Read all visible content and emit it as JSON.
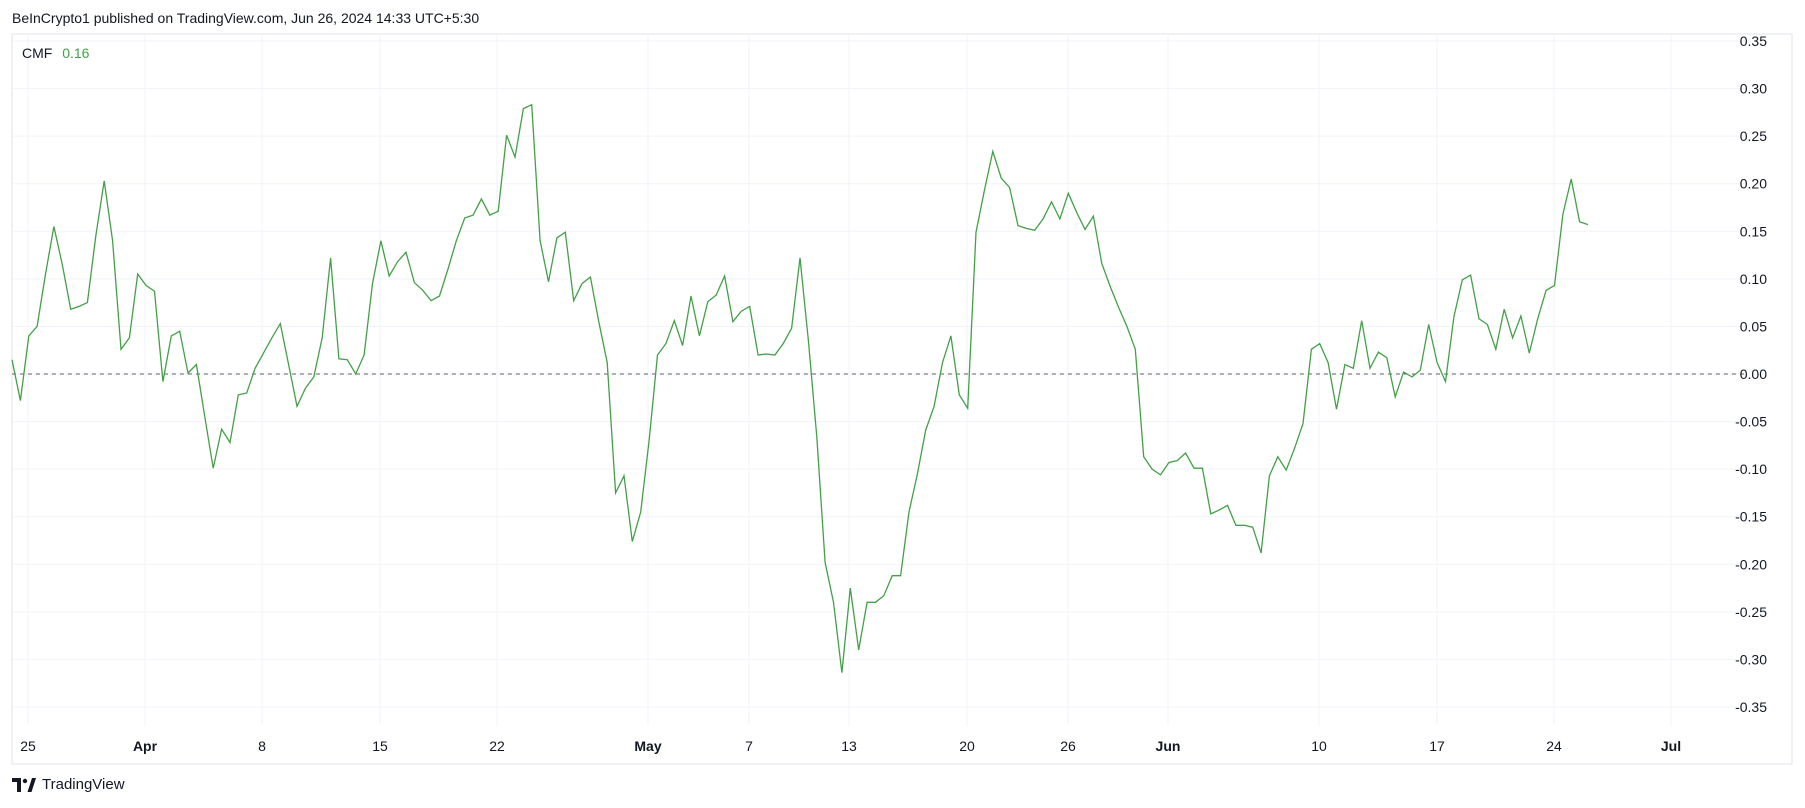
{
  "header": {
    "publisher_text": "BeInCrypto1 published on TradingView.com, Jun 26, 2024 14:33 UTC+5:30"
  },
  "indicator": {
    "name": "CMF",
    "value": "0.16",
    "color": "#43a047"
  },
  "footer": {
    "brand": "TradingView",
    "logo_icon": "tradingview-logo-icon"
  },
  "chart_data": {
    "type": "line",
    "series": [
      {
        "name": "CMF",
        "color": "#43a047",
        "values": [
          0.015,
          -0.028,
          0.04,
          0.05,
          0.105,
          0.155,
          0.115,
          0.068,
          0.071,
          0.075,
          0.145,
          0.203,
          0.14,
          0.026,
          0.038,
          0.105,
          0.093,
          0.087,
          -0.008,
          0.04,
          0.045,
          0.001,
          0.01,
          -0.045,
          -0.099,
          -0.058,
          -0.072,
          -0.022,
          -0.02,
          0.006,
          0.022,
          0.038,
          0.053,
          0.01,
          -0.034,
          -0.015,
          -0.003,
          0.038,
          0.122,
          0.016,
          0.015,
          0,
          0.02,
          0.095,
          0.14,
          0.103,
          0.118,
          0.128,
          0.096,
          0.088,
          0.077,
          0.082,
          0.11,
          0.14,
          0.164,
          0.167,
          0.184,
          0.167,
          0.171,
          0.251,
          0.228,
          0.279,
          0.283,
          0.14,
          0.097,
          0.143,
          0.149,
          0.077,
          0.095,
          0.102,
          0.055,
          0.012,
          -0.125,
          -0.107,
          -0.176,
          -0.145,
          -0.07,
          0.02,
          0.032,
          0.056,
          0.03,
          0.082,
          0.04,
          0.076,
          0.083,
          0.103,
          0.055,
          0.066,
          0.071,
          0.02,
          0.021,
          0.02,
          0.032,
          0.048,
          0.122,
          0.035,
          -0.066,
          -0.198,
          -0.24,
          -0.314,
          -0.225,
          -0.29,
          -0.24,
          -0.24,
          -0.233,
          -0.212,
          -0.212,
          -0.145,
          -0.105,
          -0.059,
          -0.034,
          0.012,
          0.04,
          -0.022,
          -0.036,
          0.149,
          0.193,
          0.234,
          0.206,
          0.196,
          0.156,
          0.153,
          0.151,
          0.163,
          0.181,
          0.163,
          0.19,
          0.17,
          0.152,
          0.166,
          0.116,
          0.092,
          0.07,
          0.05,
          0.026,
          -0.087,
          -0.1,
          -0.106,
          -0.093,
          -0.091,
          -0.083,
          -0.099,
          -0.099,
          -0.147,
          -0.143,
          -0.138,
          -0.159,
          -0.159,
          -0.161,
          -0.188,
          -0.107,
          -0.087,
          -0.101,
          -0.078,
          -0.052,
          0.026,
          0.032,
          0.012,
          -0.037,
          0.01,
          0.006,
          0.056,
          0.006,
          0.023,
          0.017,
          -0.024,
          0.002,
          -0.003,
          0.004,
          0.052,
          0.012,
          -0.008,
          0.06,
          0.099,
          0.104,
          0.058,
          0.052,
          0.026,
          0.068,
          0.038,
          0.061,
          0.022,
          0.058,
          0.088,
          0.093,
          0.168,
          0.205,
          0.16,
          0.157
        ]
      }
    ],
    "x_ticks": [
      "25",
      "Apr",
      "8",
      "15",
      "22",
      "May",
      "7",
      "13",
      "20",
      "26",
      "Jun",
      "10",
      "17",
      "24",
      "Jul"
    ],
    "y_ticks": [
      "0.35",
      "0.30",
      "0.25",
      "0.20",
      "0.15",
      "0.10",
      "0.05",
      "0.00",
      "-0.05",
      "-0.10",
      "-0.15",
      "-0.20",
      "-0.25",
      "-0.30",
      "-0.35"
    ],
    "ylim": [
      -0.35,
      0.35
    ],
    "zero_line": true,
    "grid": true
  }
}
